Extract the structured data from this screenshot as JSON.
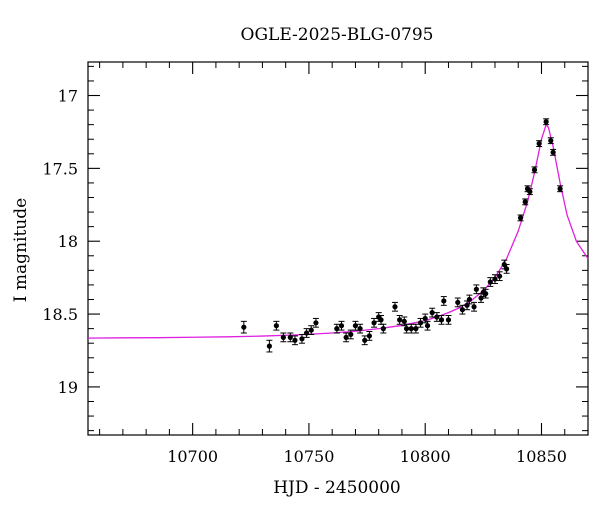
{
  "chart_data": {
    "type": "scatter",
    "title": "OGLE-2025-BLG-0795",
    "xlabel": "HJD - 2450000",
    "ylabel": "I magnitude",
    "xlim": [
      10655,
      10870
    ],
    "ylim": [
      19.33,
      16.77
    ],
    "y_inverted": true,
    "x_ticks": [
      10700,
      10750,
      10800,
      10850
    ],
    "y_ticks": [
      17,
      17.5,
      18,
      18.5,
      19
    ],
    "x_tick_labels": [
      "10700",
      "10750",
      "10800",
      "10850"
    ],
    "y_tick_labels": [
      "17",
      "17.5",
      "18",
      "18.5",
      "19"
    ],
    "model_color": "#e020e0",
    "point_color": "#000000",
    "model": [
      {
        "x": 10655,
        "y": 18.665
      },
      {
        "x": 10670,
        "y": 18.663
      },
      {
        "x": 10685,
        "y": 18.662
      },
      {
        "x": 10700,
        "y": 18.659
      },
      {
        "x": 10715,
        "y": 18.656
      },
      {
        "x": 10730,
        "y": 18.651
      },
      {
        "x": 10745,
        "y": 18.643
      },
      {
        "x": 10760,
        "y": 18.63
      },
      {
        "x": 10770,
        "y": 18.618
      },
      {
        "x": 10780,
        "y": 18.6
      },
      {
        "x": 10790,
        "y": 18.578
      },
      {
        "x": 10800,
        "y": 18.545
      },
      {
        "x": 10805,
        "y": 18.52
      },
      {
        "x": 10810,
        "y": 18.49
      },
      {
        "x": 10815,
        "y": 18.455
      },
      {
        "x": 10820,
        "y": 18.405
      },
      {
        "x": 10825,
        "y": 18.34
      },
      {
        "x": 10830,
        "y": 18.25
      },
      {
        "x": 10835,
        "y": 18.12
      },
      {
        "x": 10840,
        "y": 17.93
      },
      {
        "x": 10844,
        "y": 17.73
      },
      {
        "x": 10847,
        "y": 17.53
      },
      {
        "x": 10850,
        "y": 17.3
      },
      {
        "x": 10852,
        "y": 17.2
      },
      {
        "x": 10853,
        "y": 17.22
      },
      {
        "x": 10855,
        "y": 17.35
      },
      {
        "x": 10858,
        "y": 17.6
      },
      {
        "x": 10861,
        "y": 17.82
      },
      {
        "x": 10865,
        "y": 18.0
      },
      {
        "x": 10870,
        "y": 18.12
      }
    ],
    "points": [
      {
        "x": 10722,
        "y": 18.59,
        "err": 0.04
      },
      {
        "x": 10733,
        "y": 18.72,
        "err": 0.04
      },
      {
        "x": 10736,
        "y": 18.58,
        "err": 0.03
      },
      {
        "x": 10739,
        "y": 18.66,
        "err": 0.03
      },
      {
        "x": 10742,
        "y": 18.66,
        "err": 0.03
      },
      {
        "x": 10744,
        "y": 18.68,
        "err": 0.03
      },
      {
        "x": 10747,
        "y": 18.67,
        "err": 0.03
      },
      {
        "x": 10749,
        "y": 18.63,
        "err": 0.03
      },
      {
        "x": 10751,
        "y": 18.61,
        "err": 0.03
      },
      {
        "x": 10753,
        "y": 18.56,
        "err": 0.03
      },
      {
        "x": 10762,
        "y": 18.6,
        "err": 0.03
      },
      {
        "x": 10764,
        "y": 18.58,
        "err": 0.03
      },
      {
        "x": 10766,
        "y": 18.66,
        "err": 0.03
      },
      {
        "x": 10768,
        "y": 18.64,
        "err": 0.03
      },
      {
        "x": 10770,
        "y": 18.58,
        "err": 0.03
      },
      {
        "x": 10772,
        "y": 18.6,
        "err": 0.03
      },
      {
        "x": 10774,
        "y": 18.68,
        "err": 0.03
      },
      {
        "x": 10776,
        "y": 18.65,
        "err": 0.03
      },
      {
        "x": 10778,
        "y": 18.56,
        "err": 0.03
      },
      {
        "x": 10780,
        "y": 18.52,
        "err": 0.03
      },
      {
        "x": 10781,
        "y": 18.54,
        "err": 0.03
      },
      {
        "x": 10782,
        "y": 18.6,
        "err": 0.03
      },
      {
        "x": 10787,
        "y": 18.45,
        "err": 0.03
      },
      {
        "x": 10789,
        "y": 18.54,
        "err": 0.03
      },
      {
        "x": 10791,
        "y": 18.55,
        "err": 0.03
      },
      {
        "x": 10792,
        "y": 18.6,
        "err": 0.03
      },
      {
        "x": 10794,
        "y": 18.6,
        "err": 0.03
      },
      {
        "x": 10796,
        "y": 18.6,
        "err": 0.03
      },
      {
        "x": 10798,
        "y": 18.56,
        "err": 0.03
      },
      {
        "x": 10800,
        "y": 18.53,
        "err": 0.03
      },
      {
        "x": 10801,
        "y": 18.58,
        "err": 0.03
      },
      {
        "x": 10803,
        "y": 18.49,
        "err": 0.03
      },
      {
        "x": 10805,
        "y": 18.52,
        "err": 0.03
      },
      {
        "x": 10807,
        "y": 18.54,
        "err": 0.03
      },
      {
        "x": 10808,
        "y": 18.41,
        "err": 0.03
      },
      {
        "x": 10810,
        "y": 18.54,
        "err": 0.03
      },
      {
        "x": 10814,
        "y": 18.42,
        "err": 0.03
      },
      {
        "x": 10816,
        "y": 18.47,
        "err": 0.03
      },
      {
        "x": 10818,
        "y": 18.44,
        "err": 0.03
      },
      {
        "x": 10819,
        "y": 18.4,
        "err": 0.03
      },
      {
        "x": 10821,
        "y": 18.45,
        "err": 0.03
      },
      {
        "x": 10822,
        "y": 18.33,
        "err": 0.03
      },
      {
        "x": 10824,
        "y": 18.39,
        "err": 0.03
      },
      {
        "x": 10825,
        "y": 18.35,
        "err": 0.03
      },
      {
        "x": 10826,
        "y": 18.36,
        "err": 0.03
      },
      {
        "x": 10828,
        "y": 18.28,
        "err": 0.03
      },
      {
        "x": 10830,
        "y": 18.26,
        "err": 0.03
      },
      {
        "x": 10832,
        "y": 18.24,
        "err": 0.03
      },
      {
        "x": 10834,
        "y": 18.16,
        "err": 0.03
      },
      {
        "x": 10835,
        "y": 18.19,
        "err": 0.03
      },
      {
        "x": 10841,
        "y": 17.84,
        "err": 0.02
      },
      {
        "x": 10843,
        "y": 17.73,
        "err": 0.02
      },
      {
        "x": 10844,
        "y": 17.64,
        "err": 0.02
      },
      {
        "x": 10845,
        "y": 17.66,
        "err": 0.02
      },
      {
        "x": 10847,
        "y": 17.51,
        "err": 0.02
      },
      {
        "x": 10849,
        "y": 17.33,
        "err": 0.02
      },
      {
        "x": 10852,
        "y": 17.18,
        "err": 0.02
      },
      {
        "x": 10854,
        "y": 17.31,
        "err": 0.02
      },
      {
        "x": 10855,
        "y": 17.39,
        "err": 0.02
      },
      {
        "x": 10858,
        "y": 17.64,
        "err": 0.02
      }
    ]
  }
}
